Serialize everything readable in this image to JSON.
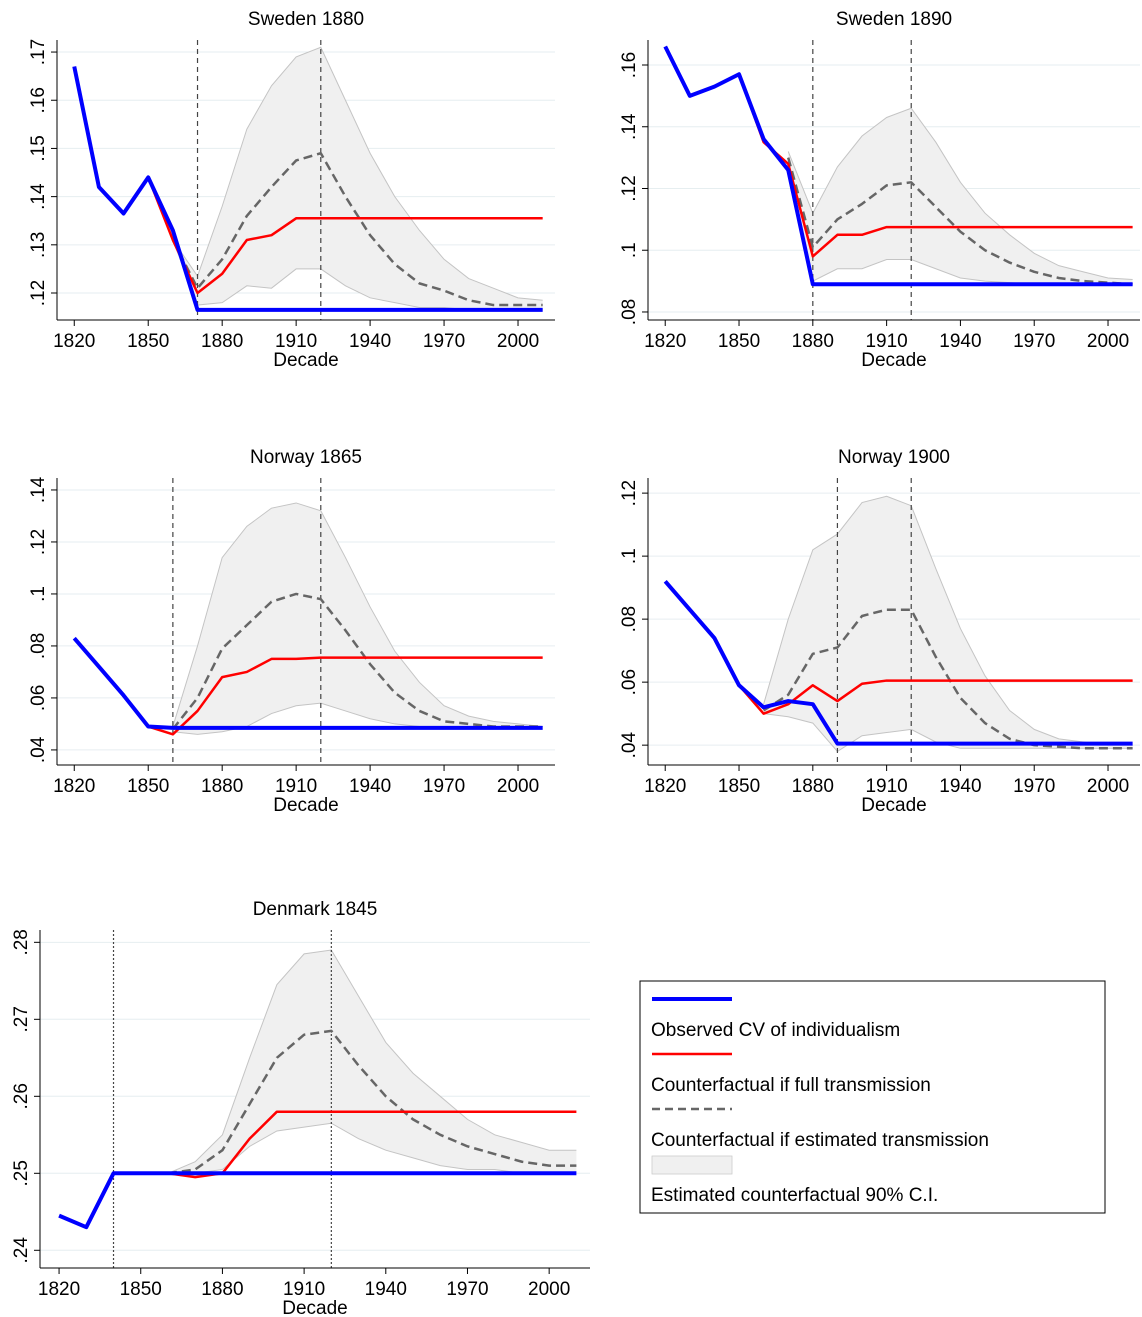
{
  "chart_data": [
    {
      "type": "line",
      "title": "Sweden 1880",
      "x_label": "Decade",
      "x": [
        1820,
        1830,
        1840,
        1850,
        1860,
        1870,
        1880,
        1890,
        1900,
        1910,
        1920,
        1930,
        1940,
        1950,
        1960,
        1970,
        1980,
        1990,
        2000,
        2010
      ],
      "xlim": [
        1813,
        2015
      ],
      "xticks": [
        1820,
        1850,
        1880,
        1910,
        1940,
        1970,
        2000
      ],
      "ylim": [
        0.1144,
        0.1725
      ],
      "yticks": [
        {
          "value": 0.12,
          "label": ".12"
        },
        {
          "value": 0.13,
          "label": ".13"
        },
        {
          "value": 0.14,
          "label": ".14"
        },
        {
          "value": 0.15,
          "label": ".15"
        },
        {
          "value": 0.16,
          "label": ".16"
        },
        {
          "value": 0.17,
          "label": ".17"
        }
      ],
      "grid": true,
      "vlines": [
        1870,
        1920
      ],
      "band": {
        "name": "Estimated counterfactual 90% C.I.",
        "color": "#f0f0f0",
        "lower": [
          null,
          null,
          null,
          null,
          0.131,
          0.1175,
          0.118,
          0.1215,
          0.121,
          0.125,
          0.125,
          0.1215,
          0.119,
          0.118,
          0.117,
          0.117,
          0.1165,
          0.1165,
          0.1165,
          0.1165
        ],
        "upper": [
          null,
          null,
          null,
          null,
          0.131,
          0.1235,
          0.138,
          0.154,
          0.163,
          0.169,
          0.171,
          0.16,
          0.149,
          0.14,
          0.133,
          0.127,
          0.123,
          0.121,
          0.119,
          0.1185
        ]
      },
      "series": [
        {
          "name": "Observed CV of individualism",
          "color": "#0000ff",
          "values": [
            0.167,
            0.142,
            0.1365,
            0.144,
            0.133,
            0.1165,
            0.1165,
            0.1165,
            0.1165,
            0.1165,
            0.1165,
            0.1165,
            0.1165,
            0.1165,
            0.1165,
            0.1165,
            0.1165,
            0.1165,
            0.1165,
            0.1165
          ]
        },
        {
          "name": "Counterfactual if full transmission",
          "color": "#ff0000",
          "values": [
            null,
            null,
            null,
            0.144,
            0.131,
            0.12,
            0.124,
            0.131,
            0.132,
            0.1355,
            0.1355,
            0.1355,
            0.1355,
            0.1355,
            0.1355,
            0.1355,
            0.1355,
            0.1355,
            0.1355,
            0.1355
          ]
        },
        {
          "name": "Counterfactual if estimated transmission",
          "color": "#666666",
          "dashed": true,
          "values": [
            null,
            null,
            null,
            null,
            0.131,
            0.121,
            0.127,
            0.136,
            0.142,
            0.1475,
            0.149,
            0.14,
            0.132,
            0.126,
            0.122,
            0.1205,
            0.1185,
            0.1175,
            0.1175,
            0.1175
          ]
        }
      ]
    },
    {
      "type": "line",
      "title": "Sweden 1890",
      "x_label": "Decade",
      "x": [
        1820,
        1830,
        1840,
        1850,
        1860,
        1870,
        1880,
        1890,
        1900,
        1910,
        1920,
        1930,
        1940,
        1950,
        1960,
        1970,
        1980,
        1990,
        2000,
        2010
      ],
      "xlim": [
        1813,
        2013
      ],
      "xticks": [
        1820,
        1850,
        1880,
        1910,
        1940,
        1970,
        2000
      ],
      "ylim": [
        0.0774,
        0.1681
      ],
      "yticks": [
        {
          "value": 0.08,
          "label": ".08"
        },
        {
          "value": 0.1,
          "label": ".1"
        },
        {
          "value": 0.12,
          "label": ".12"
        },
        {
          "value": 0.14,
          "label": ".14"
        },
        {
          "value": 0.16,
          "label": ".16"
        }
      ],
      "grid": true,
      "vlines": [
        1880,
        1920
      ],
      "band": {
        "color": "#f0f0f0",
        "lower": [
          null,
          null,
          null,
          null,
          null,
          0.124,
          0.09,
          0.094,
          0.094,
          0.097,
          0.097,
          0.094,
          0.091,
          0.09,
          0.0895,
          0.089,
          0.089,
          0.089,
          0.089,
          0.089
        ],
        "upper": [
          null,
          null,
          null,
          null,
          null,
          0.132,
          0.112,
          0.127,
          0.137,
          0.143,
          0.146,
          0.135,
          0.122,
          0.112,
          0.105,
          0.099,
          0.095,
          0.093,
          0.091,
          0.0905
        ]
      },
      "series": [
        {
          "color": "#0000ff",
          "values": [
            0.166,
            0.15,
            0.153,
            0.157,
            0.136,
            0.126,
            0.089,
            0.089,
            0.089,
            0.089,
            0.089,
            0.089,
            0.089,
            0.089,
            0.089,
            0.089,
            0.089,
            0.089,
            0.089,
            0.089
          ]
        },
        {
          "color": "#ff0000",
          "values": [
            null,
            null,
            null,
            0.157,
            0.135,
            0.128,
            0.098,
            0.105,
            0.105,
            0.1075,
            0.1075,
            0.1075,
            0.1075,
            0.1075,
            0.1075,
            0.1075,
            0.1075,
            0.1075,
            0.1075,
            0.1075
          ]
        },
        {
          "color": "#666666",
          "dashed": true,
          "values": [
            null,
            null,
            null,
            null,
            null,
            0.13,
            0.101,
            0.11,
            0.115,
            0.121,
            0.122,
            0.114,
            0.106,
            0.1,
            0.096,
            0.093,
            0.091,
            0.09,
            0.0895,
            0.089
          ]
        }
      ]
    },
    {
      "type": "line",
      "title": "Norway 1865",
      "x_label": "Decade",
      "x": [
        1820,
        1830,
        1840,
        1850,
        1860,
        1870,
        1880,
        1890,
        1900,
        1910,
        1920,
        1930,
        1940,
        1950,
        1960,
        1970,
        1980,
        1990,
        2000,
        2010
      ],
      "xlim": [
        1813,
        2015
      ],
      "xticks": [
        1820,
        1850,
        1880,
        1910,
        1940,
        1970,
        2000
      ],
      "ylim": [
        0.0342,
        0.1446
      ],
      "yticks": [
        {
          "value": 0.04,
          "label": ".04"
        },
        {
          "value": 0.06,
          "label": ".06"
        },
        {
          "value": 0.08,
          "label": ".08"
        },
        {
          "value": 0.1,
          "label": ".1"
        },
        {
          "value": 0.12,
          "label": ".12"
        },
        {
          "value": 0.14,
          "label": ".14"
        }
      ],
      "grid": true,
      "vlines": [
        1860,
        1920
      ],
      "band": {
        "color": "#f0f0f0",
        "lower": [
          null,
          null,
          null,
          null,
          0.047,
          0.046,
          0.047,
          0.049,
          0.054,
          0.057,
          0.058,
          0.055,
          0.052,
          0.05,
          0.049,
          0.049,
          0.049,
          0.049,
          0.049,
          0.049
        ],
        "upper": [
          null,
          null,
          null,
          null,
          0.049,
          0.08,
          0.114,
          0.126,
          0.133,
          0.135,
          0.132,
          0.114,
          0.095,
          0.078,
          0.066,
          0.057,
          0.053,
          0.051,
          0.05,
          0.049
        ]
      },
      "series": [
        {
          "color": "#0000ff",
          "values": [
            0.083,
            0.072,
            0.061,
            0.049,
            0.0485,
            0.0485,
            0.0485,
            0.0485,
            0.0485,
            0.0485,
            0.0485,
            0.0485,
            0.0485,
            0.0485,
            0.0485,
            0.0485,
            0.0485,
            0.0485,
            0.0485,
            0.0485
          ]
        },
        {
          "color": "#ff0000",
          "values": [
            null,
            null,
            null,
            0.049,
            0.046,
            0.055,
            0.068,
            0.07,
            0.075,
            0.075,
            0.0755,
            0.0755,
            0.0755,
            0.0755,
            0.0755,
            0.0755,
            0.0755,
            0.0755,
            0.0755,
            0.0755
          ]
        },
        {
          "color": "#666666",
          "dashed": true,
          "values": [
            null,
            null,
            null,
            null,
            0.048,
            0.06,
            0.079,
            0.088,
            0.097,
            0.1,
            0.098,
            0.086,
            0.073,
            0.062,
            0.055,
            0.051,
            0.05,
            0.049,
            0.049,
            0.049
          ]
        }
      ]
    },
    {
      "type": "line",
      "title": "Norway 1900",
      "x_label": "Decade",
      "x": [
        1820,
        1830,
        1840,
        1850,
        1860,
        1870,
        1880,
        1890,
        1900,
        1910,
        1920,
        1930,
        1940,
        1950,
        1960,
        1970,
        1980,
        1990,
        2000,
        2010
      ],
      "xlim": [
        1813,
        2013
      ],
      "xticks": [
        1820,
        1850,
        1880,
        1910,
        1940,
        1970,
        2000
      ],
      "ylim": [
        0.0337,
        0.1248
      ],
      "yticks": [
        {
          "value": 0.04,
          "label": ".04"
        },
        {
          "value": 0.06,
          "label": ".06"
        },
        {
          "value": 0.08,
          "label": ".08"
        },
        {
          "value": 0.1,
          "label": ".1"
        },
        {
          "value": 0.12,
          "label": ".12"
        }
      ],
      "grid": true,
      "vlines": [
        1890,
        1920
      ],
      "band": {
        "color": "#f0f0f0",
        "lower": [
          null,
          null,
          null,
          null,
          0.05,
          0.049,
          0.047,
          0.038,
          0.043,
          0.044,
          0.045,
          0.041,
          0.039,
          0.039,
          0.039,
          0.039,
          0.039,
          0.039,
          0.039,
          0.039
        ],
        "upper": [
          null,
          null,
          null,
          null,
          0.053,
          0.08,
          0.102,
          0.107,
          0.117,
          0.119,
          0.116,
          0.096,
          0.077,
          0.062,
          0.051,
          0.045,
          0.042,
          0.041,
          0.04,
          0.04
        ]
      },
      "series": [
        {
          "color": "#0000ff",
          "values": [
            0.092,
            0.083,
            0.074,
            0.059,
            0.052,
            0.054,
            0.053,
            0.0405,
            0.0405,
            0.0405,
            0.0405,
            0.0405,
            0.0405,
            0.0405,
            0.0405,
            0.0405,
            0.0405,
            0.0405,
            0.0405,
            0.0405
          ]
        },
        {
          "color": "#ff0000",
          "values": [
            null,
            null,
            null,
            0.059,
            0.05,
            0.053,
            0.059,
            0.054,
            0.0595,
            0.0605,
            0.0605,
            0.0605,
            0.0605,
            0.0605,
            0.0605,
            0.0605,
            0.0605,
            0.0605,
            0.0605,
            0.0605
          ]
        },
        {
          "color": "#666666",
          "dashed": true,
          "values": [
            null,
            null,
            null,
            null,
            0.051,
            0.056,
            0.069,
            0.071,
            0.081,
            0.083,
            0.083,
            0.068,
            0.055,
            0.047,
            0.042,
            0.04,
            0.0395,
            0.039,
            0.039,
            0.039
          ]
        }
      ]
    },
    {
      "type": "line",
      "title": "Denmark 1845",
      "x_label": "Decade",
      "x": [
        1820,
        1830,
        1840,
        1850,
        1860,
        1870,
        1880,
        1890,
        1900,
        1910,
        1920,
        1930,
        1940,
        1950,
        1960,
        1970,
        1980,
        1990,
        2000,
        2010
      ],
      "xlim": [
        1813,
        2015
      ],
      "xticks": [
        1820,
        1850,
        1880,
        1910,
        1940,
        1970,
        2000
      ],
      "ylim": [
        0.2377,
        0.2816
      ],
      "yticks": [
        {
          "value": 0.24,
          "label": ".24"
        },
        {
          "value": 0.25,
          "label": ".25"
        },
        {
          "value": 0.26,
          "label": ".26"
        },
        {
          "value": 0.27,
          "label": ".27"
        },
        {
          "value": 0.28,
          "label": ".28"
        }
      ],
      "grid": true,
      "vlines": [
        1840,
        1920
      ],
      "band": {
        "color": "#f0f0f0",
        "lower": [
          null,
          null,
          null,
          null,
          0.25,
          0.25,
          0.2505,
          0.2535,
          0.2555,
          0.256,
          0.2565,
          0.2545,
          0.253,
          0.252,
          0.251,
          0.2505,
          0.2505,
          0.25,
          0.25,
          0.25
        ],
        "upper": [
          null,
          null,
          null,
          null,
          0.25,
          0.2515,
          0.255,
          0.265,
          0.2745,
          0.2785,
          0.279,
          0.273,
          0.267,
          0.263,
          0.26,
          0.257,
          0.255,
          0.254,
          0.253,
          0.253
        ]
      },
      "series": [
        {
          "color": "#0000ff",
          "values": [
            0.2445,
            0.243,
            0.25,
            0.25,
            0.25,
            0.25,
            0.25,
            0.25,
            0.25,
            0.25,
            0.25,
            0.25,
            0.25,
            0.25,
            0.25,
            0.25,
            0.25,
            0.25,
            0.25,
            0.25
          ]
        },
        {
          "color": "#ff0000",
          "values": [
            null,
            null,
            null,
            null,
            0.25,
            0.2495,
            0.25,
            0.2545,
            0.258,
            0.258,
            0.258,
            0.258,
            0.258,
            0.258,
            0.258,
            0.258,
            0.258,
            0.258,
            0.258,
            0.258
          ]
        },
        {
          "color": "#666666",
          "dashed": true,
          "values": [
            null,
            null,
            null,
            null,
            0.25,
            0.2505,
            0.253,
            0.259,
            0.265,
            0.268,
            0.2685,
            0.264,
            0.26,
            0.257,
            0.255,
            0.2535,
            0.2525,
            0.2515,
            0.251,
            0.251
          ]
        }
      ]
    }
  ]
}
